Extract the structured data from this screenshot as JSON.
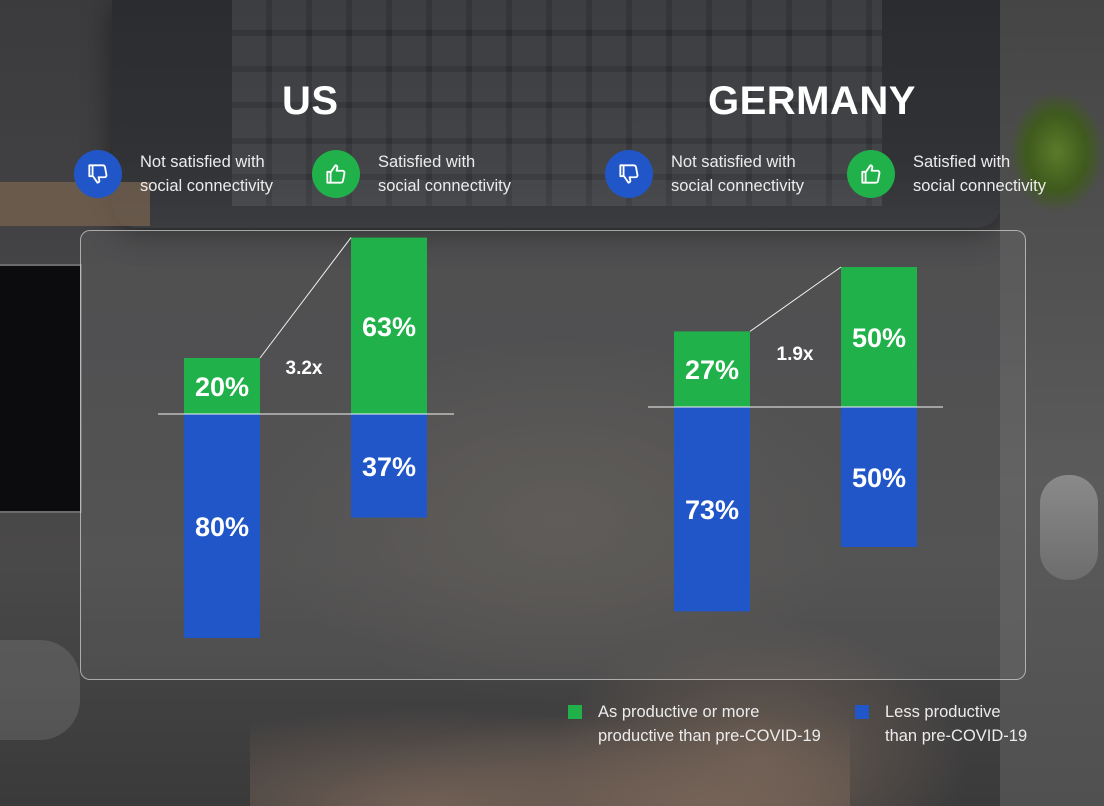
{
  "colors": {
    "satisfied_green": "#21b14a",
    "not_satisfied_blue": "#2156c9"
  },
  "header": {
    "us_title": "US",
    "germany_title": "GERMANY",
    "icon_legend": {
      "not_satisfied_line1": "Not satisfied with",
      "not_satisfied_line2": "social connectivity",
      "satisfied_line1": "Satisfied with",
      "satisfied_line2": "social connectivity",
      "not_satisfied_icon": "thumbs-down-icon",
      "satisfied_icon": "thumbs-up-icon"
    }
  },
  "bottom_legend": {
    "green_line1": "As productive or more",
    "green_line2": "productive than pre-COVID-19",
    "blue_line1": "Less productive",
    "blue_line2": "than pre-COVID-19"
  },
  "chart_data": [
    {
      "type": "bar",
      "group": "US",
      "categories": [
        "Not satisfied with social connectivity",
        "Satisfied with social connectivity"
      ],
      "series": [
        {
          "name": "As productive or more productive than pre-COVID-19",
          "values": [
            20,
            63
          ],
          "labels": [
            "20%",
            "63%"
          ]
        },
        {
          "name": "Less productive than pre-COVID-19",
          "values": [
            80,
            37
          ],
          "labels": [
            "80%",
            "37%"
          ]
        }
      ],
      "ratio_label": "3.2x"
    },
    {
      "type": "bar",
      "group": "GERMANY",
      "categories": [
        "Not satisfied with social connectivity",
        "Satisfied with social connectivity"
      ],
      "series": [
        {
          "name": "As productive or more productive than pre-COVID-19",
          "values": [
            27,
            50
          ],
          "labels": [
            "27%",
            "50%"
          ]
        },
        {
          "name": "Less productive than pre-COVID-19",
          "values": [
            73,
            50
          ],
          "labels": [
            "73%",
            "50%"
          ]
        }
      ],
      "ratio_label": "1.9x"
    }
  ]
}
